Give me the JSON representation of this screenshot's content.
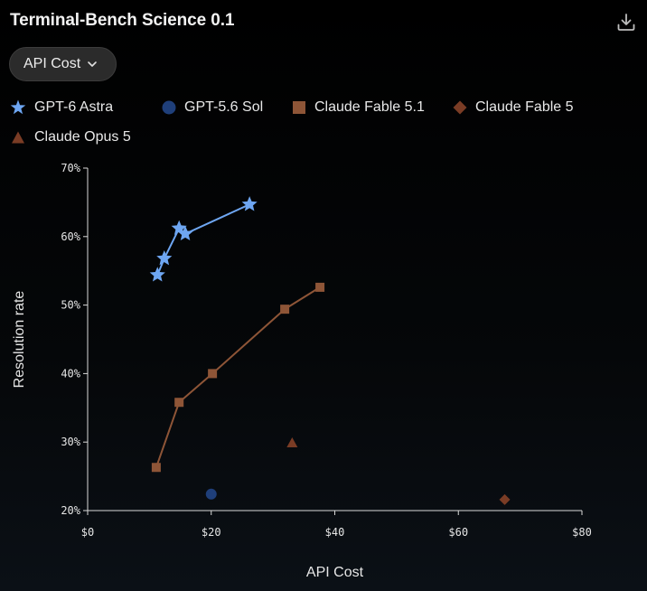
{
  "header": {
    "title": "Terminal-Bench Science 0.1",
    "download_icon": "download-icon"
  },
  "controls": {
    "metric_selected": "API Cost",
    "chevron_icon": "chevron-down-icon"
  },
  "legend": [
    {
      "label": "GPT-6 Astra",
      "marker": "star",
      "color": "#6ea6f2"
    },
    {
      "label": "GPT-5.6 Sol",
      "marker": "circle",
      "color": "#1f3f7a"
    },
    {
      "label": "Claude Fable 5.1",
      "marker": "square",
      "color": "#8e5537"
    },
    {
      "label": "Claude Fable 5",
      "marker": "diamond",
      "color": "#7a3c25"
    },
    {
      "label": "Claude Opus 5",
      "marker": "triangle",
      "color": "#7a3c25"
    }
  ],
  "chart_data": {
    "type": "scatter",
    "xlabel": "API Cost",
    "ylabel": "Resolution rate",
    "xlim": [
      0,
      80
    ],
    "ylim": [
      20,
      70
    ],
    "x_ticks": [
      0,
      20,
      40,
      60,
      80
    ],
    "x_tick_labels": [
      "$0",
      "$20",
      "$40",
      "$60",
      "$80"
    ],
    "y_ticks": [
      20,
      30,
      40,
      50,
      60,
      70
    ],
    "y_tick_labels": [
      "20%",
      "30%",
      "40%",
      "50%",
      "60%",
      "70%"
    ],
    "grid": false,
    "legend_position": "top",
    "series": [
      {
        "name": "GPT-6 Astra",
        "marker": "star",
        "color": "#6ea6f2",
        "connected": true,
        "points": [
          [
            11.3,
            54.4
          ],
          [
            12.4,
            56.8
          ],
          [
            14.8,
            61.2
          ],
          [
            15.8,
            60.4
          ],
          [
            26.2,
            64.7
          ]
        ]
      },
      {
        "name": "GPT-5.6 Sol",
        "marker": "circle",
        "color": "#1f3f7a",
        "connected": false,
        "points": [
          [
            20.0,
            22.4
          ]
        ]
      },
      {
        "name": "Claude Fable 5.1",
        "marker": "square",
        "color": "#8e5537",
        "connected": true,
        "points": [
          [
            11.1,
            26.3
          ],
          [
            14.8,
            35.8
          ],
          [
            20.2,
            40.0
          ],
          [
            31.9,
            49.4
          ],
          [
            37.6,
            52.6
          ]
        ]
      },
      {
        "name": "Claude Fable 5",
        "marker": "diamond",
        "color": "#7a3c25",
        "connected": false,
        "points": [
          [
            67.5,
            21.6
          ]
        ]
      },
      {
        "name": "Claude Opus 5",
        "marker": "triangle",
        "color": "#7a3c25",
        "connected": false,
        "points": [
          [
            33.1,
            29.9
          ]
        ]
      }
    ]
  }
}
